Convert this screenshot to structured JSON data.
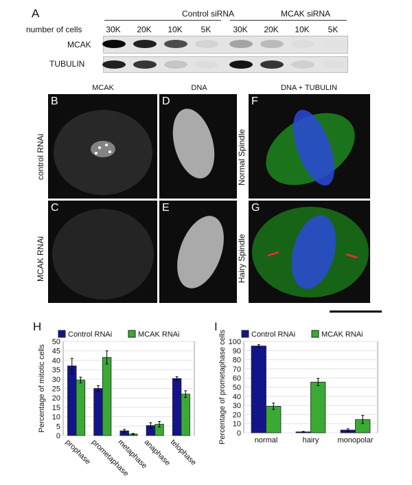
{
  "panel_a": {
    "label": "A",
    "group_headers": [
      "Control siRNA",
      "MCAK siRNA"
    ],
    "row_header": "number of cells",
    "lanes": [
      "30K",
      "20K",
      "10K",
      "5K",
      "30K",
      "20K",
      "10K",
      "5K"
    ],
    "rows": [
      {
        "name": "MCAK",
        "intensity": [
          1.0,
          0.9,
          0.7,
          0.08,
          0.3,
          0.2,
          0.04,
          0.02
        ]
      },
      {
        "name": "TUBULIN",
        "intensity": [
          0.9,
          0.8,
          0.15,
          0.04,
          0.95,
          0.8,
          0.1,
          0.03
        ]
      }
    ]
  },
  "micrographs": {
    "columns": [
      "MCAK",
      "DNA",
      "DNA + TUBULIN"
    ],
    "rows": [
      "control RNAi",
      "MCAK RNAi"
    ],
    "spindle_labels": [
      "Normal Spindle",
      "Hairy Spindle"
    ],
    "panels": [
      "B",
      "C",
      "D",
      "E",
      "F",
      "G"
    ],
    "colors": {
      "tubulin": "#2fbf2f",
      "dna": "#2a4ad8",
      "arrow": "#e03030"
    }
  },
  "chart_data": [
    {
      "panel": "H",
      "type": "bar",
      "ylabel": "Percentage of mitotic cells",
      "ylim": [
        0,
        50
      ],
      "yticks": [
        0,
        5,
        10,
        15,
        20,
        25,
        30,
        35,
        40,
        45,
        50
      ],
      "grid": true,
      "legend_placement": "top-right",
      "categories": [
        "prophase",
        "prometaphase",
        "metaphase",
        "anaphase",
        "telophase"
      ],
      "series": [
        {
          "name": "Control RNAi",
          "color": "#14148a",
          "values": [
            37,
            25,
            2.5,
            5.3,
            30.3
          ],
          "errors": [
            4,
            1.5,
            0.8,
            1.5,
            1
          ]
        },
        {
          "name": "MCAK RNAi",
          "color": "#3aaa35",
          "values": [
            29.5,
            41.5,
            0.8,
            6,
            22
          ],
          "errors": [
            1.5,
            3.5,
            0.3,
            1.5,
            1.8
          ]
        }
      ]
    },
    {
      "panel": "I",
      "type": "bar",
      "ylabel": "Percentage of prometaphase cells",
      "ylim": [
        0,
        100
      ],
      "yticks": [
        0,
        10,
        20,
        30,
        40,
        50,
        60,
        70,
        80,
        90,
        100
      ],
      "grid": true,
      "legend_placement": "top-right",
      "categories": [
        "normal",
        "hairy",
        "monopolar"
      ],
      "series": [
        {
          "name": "Control RNAi",
          "color": "#14148a",
          "values": [
            95,
            1,
            3
          ],
          "errors": [
            1.5,
            0.5,
            1.5
          ]
        },
        {
          "name": "MCAK RNAi",
          "color": "#3aaa35",
          "values": [
            29,
            55.5,
            14.5
          ],
          "errors": [
            3.5,
            4,
            4.5
          ]
        }
      ]
    }
  ]
}
